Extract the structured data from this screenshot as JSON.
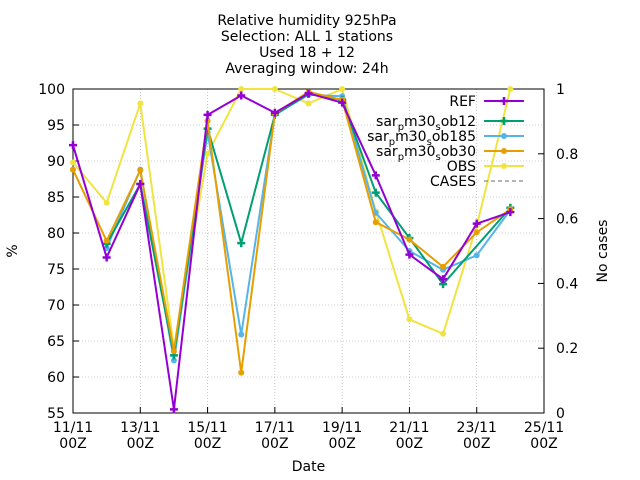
{
  "chart_data": {
    "type": "line",
    "title_lines": [
      "Relative humidity 925hPa",
      "Selection: ALL       1 stations",
      "Used 18 + 12",
      "Averaging window: 24h"
    ],
    "xlabel": "Date",
    "ylabel": "%",
    "y2label": "No cases",
    "x_ticks": [
      {
        "line1": "11/11",
        "line2": "00Z",
        "day": 0
      },
      {
        "line1": "13/11",
        "line2": "00Z",
        "day": 2
      },
      {
        "line1": "15/11",
        "line2": "00Z",
        "day": 4
      },
      {
        "line1": "17/11",
        "line2": "00Z",
        "day": 6
      },
      {
        "line1": "19/11",
        "line2": "00Z",
        "day": 8
      },
      {
        "line1": "21/11",
        "line2": "00Z",
        "day": 10
      },
      {
        "line1": "23/11",
        "line2": "00Z",
        "day": 12
      },
      {
        "line1": "25/11",
        "line2": "00Z",
        "day": 14
      }
    ],
    "xlim_days": [
      0,
      14
    ],
    "ylim": [
      55,
      100
    ],
    "y_ticks": [
      55,
      60,
      65,
      70,
      75,
      80,
      85,
      90,
      95,
      100
    ],
    "y2lim": [
      0,
      1
    ],
    "y2_ticks": [
      "0",
      "0.2",
      "0.4",
      "0.6",
      "0.8",
      "1"
    ],
    "x_days": [
      0,
      1,
      2,
      3,
      4,
      5,
      6,
      7,
      8,
      9,
      10,
      11,
      12,
      13
    ],
    "series": [
      {
        "name": "REF",
        "color": "#9400d3",
        "marker": "plus",
        "legend_mark": "line",
        "values": [
          92.2,
          76.6,
          86.8,
          55.5,
          96.4,
          99.1,
          96.7,
          99.4,
          98.1,
          88.0,
          77.0,
          73.6,
          81.3,
          82.9
        ]
      },
      {
        "name": "sar_p m30_s ob12",
        "legend_parts": [
          "sar",
          "p",
          "m30",
          "s",
          "ob12"
        ],
        "color": "#009e73",
        "marker": "plus",
        "legend_mark": "line",
        "values": [
          null,
          78.5,
          86.8,
          63.0,
          94.5,
          78.6,
          96.4,
          99.3,
          98.5,
          85.6,
          79.3,
          72.9,
          null,
          83.5
        ]
      },
      {
        "name": "sar_p m30_s ob185",
        "legend_parts": [
          "sar",
          "p",
          "m30",
          "s",
          "ob185"
        ],
        "color": "#56b4e9",
        "marker": "dot",
        "legend_mark": "line",
        "values": [
          null,
          77.9,
          88.8,
          62.3,
          94.0,
          65.9,
          96.5,
          99.2,
          99.0,
          82.8,
          77.5,
          74.9,
          76.9,
          83.2
        ]
      },
      {
        "name": "sar_p m30_s ob30",
        "legend_parts": [
          "sar",
          "p",
          "m30",
          "s",
          "ob30"
        ],
        "color": "#e69f00",
        "marker": "dot",
        "legend_mark": "line",
        "values": [
          88.8,
          78.9,
          88.7,
          63.6,
          95.6,
          60.6,
          96.6,
          99.6,
          98.5,
          81.5,
          79.1,
          75.3,
          80.1,
          83.3
        ]
      },
      {
        "name": "OBS",
        "color": "#f0e442",
        "marker": "dot",
        "legend_mark": "line",
        "values": [
          89.8,
          84.2,
          98.0,
          64.0,
          91.0,
          100.0,
          100.0,
          98.0,
          100.0,
          83.0,
          68.0,
          66.0,
          81.0,
          100.0
        ]
      },
      {
        "name": "CASES",
        "color": "#888888",
        "marker": "none",
        "legend_mark": "dashed",
        "values": []
      }
    ]
  }
}
